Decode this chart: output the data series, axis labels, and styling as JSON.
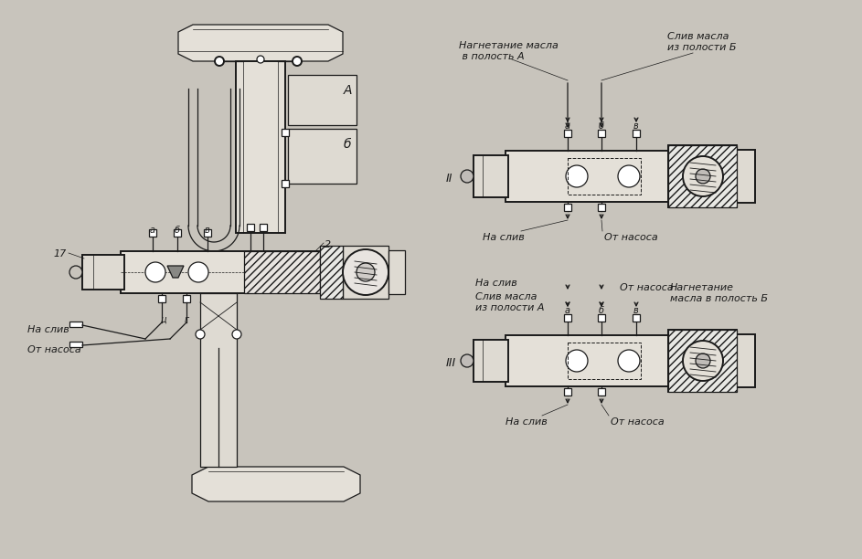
{
  "bg_color": "#c8c4bc",
  "line_color": "#1a1a1a",
  "labels": {
    "nagnetanie_A": "Нагнетание масла\n в полость А",
    "sliv_B": "Слив масла\nиз полости Б",
    "na_sliv_II": "На слив",
    "ot_nasosa_II": "От насоса",
    "nagnetanie_B": "Нагнетание\nмасла в полость Б",
    "sliv_masla_iz_A": "Слив масла\nиз полости А",
    "na_sliv_III": "На слив",
    "ot_nasosa_III": "От насоса",
    "na_sliv_main": "На слив",
    "ot_nasosa_main": "От насоса",
    "label_A": "А",
    "label_B": "б",
    "label_17": "17",
    "label_2": "2",
    "label_II": "II",
    "label_III": "III"
  }
}
